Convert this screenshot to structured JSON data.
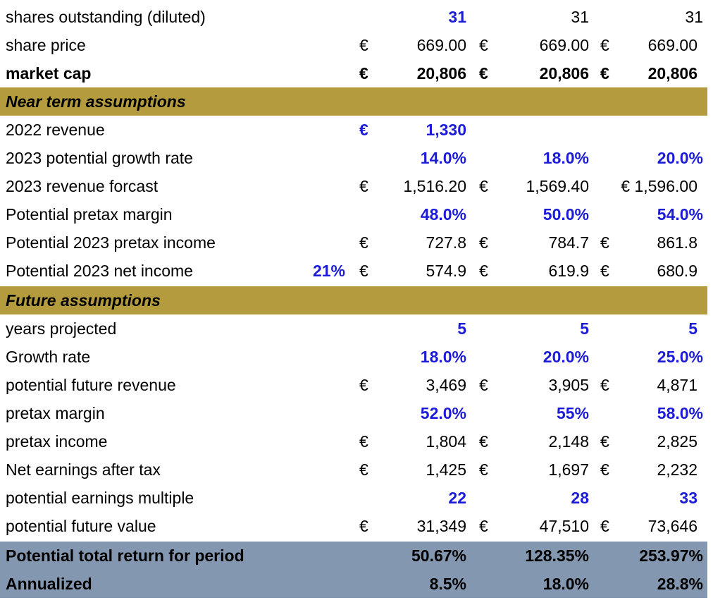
{
  "currency_symbol": "€",
  "colors": {
    "section_header_bg": "#b39b3e",
    "summary_bg": "#8497b0",
    "input_blue": "#1c1cd8"
  },
  "rows": {
    "shares": {
      "label": "shares outstanding (diluted)",
      "values": [
        "31",
        "31",
        "31"
      ]
    },
    "share_price": {
      "label": "share price",
      "values": [
        "669.00",
        "669.00",
        "669.00"
      ]
    },
    "market_cap": {
      "label": "market cap",
      "values": [
        "20,806",
        "20,806",
        "20,806"
      ]
    },
    "near_term_header": {
      "label": "Near term assumptions"
    },
    "revenue_2022": {
      "label": "2022 revenue",
      "values": [
        "1,330"
      ]
    },
    "growth_2023": {
      "label": "2023 potential growth rate",
      "values": [
        "14.0%",
        "18.0%",
        "20.0%"
      ]
    },
    "revenue_forecast_2023": {
      "label": "2023 revenue forcast",
      "values": [
        "1,516.20",
        "1,569.40",
        "€ 1,596.00"
      ]
    },
    "pretax_margin_potential": {
      "label": "Potential pretax margin",
      "values": [
        "48.0%",
        "50.0%",
        "54.0%"
      ]
    },
    "pretax_income_2023": {
      "label": "Potential 2023 pretax income",
      "values": [
        "727.8",
        "784.7",
        "861.8"
      ]
    },
    "net_income_2023": {
      "label": "Potential 2023 net income",
      "tax_rate": "21%",
      "values": [
        "574.9",
        "619.9",
        "680.9"
      ]
    },
    "future_header": {
      "label": "Future assumptions"
    },
    "years_projected": {
      "label": "years projected",
      "values": [
        "5",
        "5",
        "5"
      ]
    },
    "growth_rate": {
      "label": "Growth rate",
      "values": [
        "18.0%",
        "20.0%",
        "25.0%"
      ]
    },
    "future_revenue": {
      "label": "potential future revenue",
      "values": [
        "3,469",
        "3,905",
        "4,871"
      ]
    },
    "pretax_margin": {
      "label": "pretax margin",
      "values": [
        "52.0%",
        "55%",
        "58.0%"
      ]
    },
    "pretax_income": {
      "label": "pretax income",
      "values": [
        "1,804",
        "2,148",
        "2,825"
      ]
    },
    "net_earnings": {
      "label": "Net earnings after tax",
      "values": [
        "1,425",
        "1,697",
        "2,232"
      ]
    },
    "earnings_multiple": {
      "label": "potential earnings multiple",
      "values": [
        "22",
        "28",
        "33"
      ]
    },
    "future_value": {
      "label": "potential future value",
      "values": [
        "31,349",
        "47,510",
        "73,646"
      ]
    },
    "total_return": {
      "label": "Potential total return for period",
      "values": [
        "50.67%",
        "128.35%",
        "253.97%"
      ]
    },
    "annualized": {
      "label": "Annualized",
      "values": [
        "8.5%",
        "18.0%",
        "28.8%"
      ]
    }
  }
}
